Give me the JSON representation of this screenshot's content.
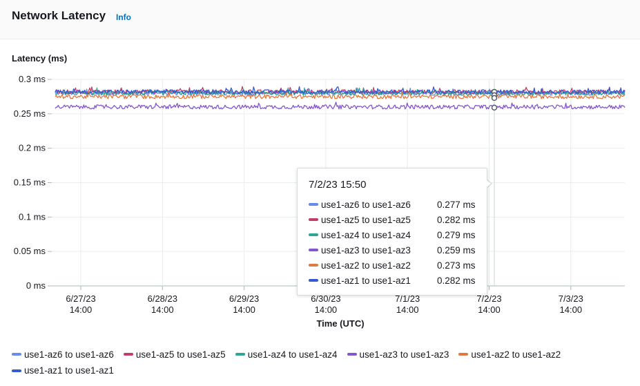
{
  "header": {
    "title": "Network Latency",
    "info_label": "Info"
  },
  "chart_data": {
    "type": "line",
    "ylabel": "Latency (ms)",
    "xlabel": "Time (UTC)",
    "ylim": [
      0,
      0.3
    ],
    "y_ticks": [
      "0 ms",
      "0.05 ms",
      "0.1 ms",
      "0.15 ms",
      "0.2 ms",
      "0.25 ms",
      "0.3 ms"
    ],
    "y_tick_values": [
      0,
      0.05,
      0.1,
      0.15,
      0.2,
      0.25,
      0.3
    ],
    "x_ticks": [
      {
        "date": "6/27/23",
        "time": "14:00"
      },
      {
        "date": "6/28/23",
        "time": "14:00"
      },
      {
        "date": "6/29/23",
        "time": "14:00"
      },
      {
        "date": "6/30/23",
        "time": "14:00"
      },
      {
        "date": "7/1/23",
        "time": "14:00"
      },
      {
        "date": "7/2/23",
        "time": "14:00"
      },
      {
        "date": "7/3/23",
        "time": "14:00"
      }
    ],
    "grid": true,
    "legend_position": "bottom",
    "series": [
      {
        "name": "use1-az6 to use1-az6",
        "color": "#688ae8",
        "mean": 0.28,
        "noise": 0.003
      },
      {
        "name": "use1-az5 to use1-az5",
        "color": "#c33d69",
        "mean": 0.282,
        "noise": 0.003
      },
      {
        "name": "use1-az4 to use1-az4",
        "color": "#2ea597",
        "mean": 0.28,
        "noise": 0.003
      },
      {
        "name": "use1-az3 to use1-az3",
        "color": "#8456ce",
        "mean": 0.26,
        "noise": 0.003
      },
      {
        "name": "use1-az2 to use1-az2",
        "color": "#e07941",
        "mean": 0.275,
        "noise": 0.003
      },
      {
        "name": "use1-az1 to use1-az1",
        "color": "#3759ce",
        "mean": 0.282,
        "noise": 0.003
      }
    ],
    "tooltip": {
      "title": "7/2/23 15:50",
      "rows": [
        {
          "name": "use1-az6 to use1-az6",
          "value": "0.277 ms"
        },
        {
          "name": "use1-az5 to use1-az5",
          "value": "0.282 ms"
        },
        {
          "name": "use1-az4 to use1-az4",
          "value": "0.279 ms"
        },
        {
          "name": "use1-az3 to use1-az3",
          "value": "0.259 ms"
        },
        {
          "name": "use1-az2 to use1-az2",
          "value": "0.273 ms"
        },
        {
          "name": "use1-az1 to use1-az1",
          "value": "0.282 ms"
        }
      ],
      "markers": [
        0.282,
        0.277,
        0.273,
        0.259
      ]
    }
  }
}
